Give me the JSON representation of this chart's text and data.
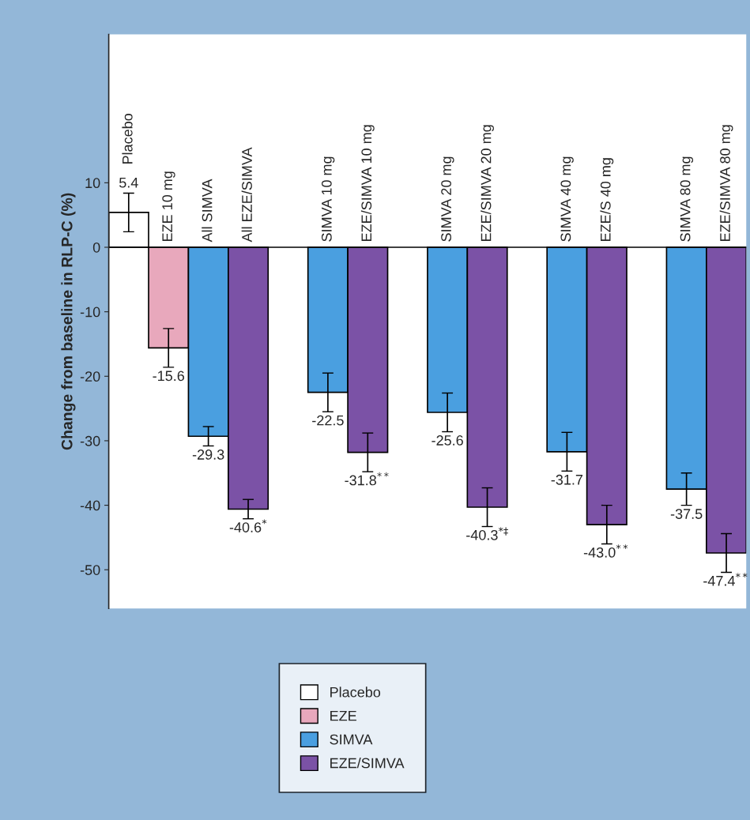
{
  "chart_data": {
    "type": "bar",
    "ylabel": "Change from baseline in RLP-C (%)",
    "categories": [
      "Placebo",
      "EZE 10 mg",
      "All SIMVA",
      "All EZE/SIMVA",
      null,
      "SIMVA 10 mg",
      "EZE/SIMVA 10 mg",
      null,
      "SIMVA 20 mg",
      "EZE/SIMVA 20 mg",
      null,
      "SIMVA 40 mg",
      "EZE/S 40 mg",
      null,
      "SIMVA 80 mg",
      "EZE/SIMVA 80 mg"
    ],
    "series": [
      {
        "name": "Placebo",
        "color": "#ffffff",
        "values": [
          5.4,
          null,
          null,
          null,
          null,
          null,
          null,
          null,
          null,
          null,
          null,
          null,
          null,
          null,
          null,
          null
        ],
        "errors": [
          3,
          null,
          null,
          null,
          null,
          null,
          null,
          null,
          null,
          null,
          null,
          null,
          null,
          null,
          null,
          null
        ]
      },
      {
        "name": "EZE",
        "color": "#e8a8bc",
        "values": [
          null,
          -15.6,
          null,
          null,
          null,
          null,
          null,
          null,
          null,
          null,
          null,
          null,
          null,
          null,
          null,
          null
        ],
        "errors": [
          null,
          3,
          null,
          null,
          null,
          null,
          null,
          null,
          null,
          null,
          null,
          null,
          null,
          null,
          null,
          null
        ]
      },
      {
        "name": "SIMVA",
        "color": "#4a9fe0",
        "values": [
          null,
          null,
          -29.3,
          null,
          null,
          -22.5,
          null,
          null,
          -25.6,
          null,
          null,
          -31.7,
          null,
          null,
          -37.5,
          null
        ],
        "errors": [
          null,
          null,
          1.5,
          null,
          null,
          3,
          null,
          null,
          3,
          null,
          null,
          3,
          null,
          null,
          2.5,
          null
        ]
      },
      {
        "name": "EZE/SIMVA",
        "color": "#7b52a6",
        "values": [
          null,
          null,
          null,
          -40.6,
          null,
          null,
          -31.8,
          null,
          null,
          -40.3,
          null,
          null,
          -43.0,
          null,
          null,
          -47.4
        ],
        "errors": [
          null,
          null,
          null,
          1.5,
          null,
          null,
          3,
          null,
          null,
          3,
          null,
          null,
          3,
          null,
          null,
          3
        ]
      }
    ],
    "value_labels": [
      "5.4",
      "-15.6",
      "-29.3",
      "-40.6$^{*}$",
      null,
      "-22.5",
      "-31.8$^{**}$",
      null,
      "-25.6",
      "-40.3$^{*‡}$",
      null,
      "-31.7",
      "-43.0$^{**}$",
      null,
      "-37.5",
      "-47.4$^{**}$"
    ],
    "ylim": [
      -56,
      33
    ],
    "yticks": [
      -50,
      -40,
      -30,
      -20,
      -10,
      0,
      10
    ],
    "grid": false,
    "legend": "bottom"
  }
}
